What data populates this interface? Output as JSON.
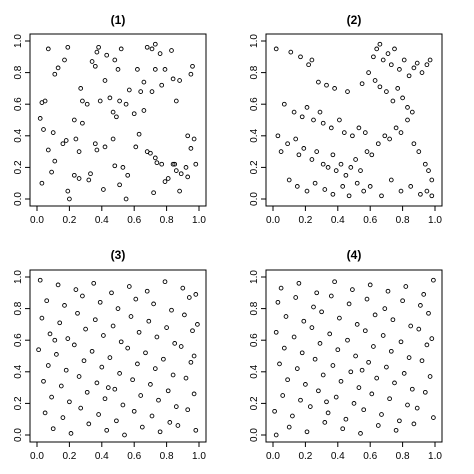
{
  "chart_data": [
    {
      "type": "scatter",
      "title": "(1)",
      "xlim": [
        0,
        1
      ],
      "ylim": [
        0,
        1
      ],
      "xticks": [
        "0.0",
        "0.2",
        "0.4",
        "0.6",
        "0.8",
        "1.0"
      ],
      "yticks": [
        "0.0",
        "0.2",
        "0.4",
        "0.6",
        "0.8",
        "1.0"
      ],
      "grid": false,
      "x": [
        0.07,
        0.19,
        0.17,
        0.13,
        0.11,
        0.37,
        0.38,
        0.43,
        0.48,
        0.52,
        0.5,
        0.42,
        0.36,
        0.34,
        0.27,
        0.28,
        0.68,
        0.71,
        0.73,
        0.76,
        0.73,
        0.79,
        0.83,
        0.84,
        0.86,
        0.88,
        0.95,
        0.96,
        0.77,
        0.71,
        0.62,
        0.64,
        0.66,
        0.57,
        0.55,
        0.51,
        0.47,
        0.45,
        0.49,
        0.39,
        0.31,
        0.28,
        0.23,
        0.24,
        0.18,
        0.1,
        0.02,
        0.03,
        0.05,
        0.04,
        0.07,
        0.11,
        0.16,
        0.23,
        0.26,
        0.36,
        0.37,
        0.42,
        0.47,
        0.48,
        0.53,
        0.56,
        0.61,
        0.63,
        0.68,
        0.7,
        0.73,
        0.74,
        0.77,
        0.84,
        0.86,
        0.88,
        0.92,
        0.93,
        0.95,
        0.97,
        0.98,
        0.93,
        0.89,
        0.85,
        0.81,
        0.79,
        0.72,
        0.55,
        0.51,
        0.41,
        0.32,
        0.33,
        0.26,
        0.19,
        0.2,
        0.09,
        0.03,
        0.6,
        0.66
      ],
      "y": [
        0.95,
        0.96,
        0.88,
        0.83,
        0.79,
        0.93,
        0.96,
        0.91,
        0.88,
        0.95,
        0.82,
        0.75,
        0.84,
        0.87,
        0.7,
        0.62,
        0.96,
        0.95,
        0.98,
        0.92,
        0.82,
        0.82,
        0.94,
        0.76,
        0.62,
        0.75,
        0.79,
        0.84,
        0.72,
        0.68,
        0.82,
        0.68,
        0.74,
        0.69,
        0.6,
        0.62,
        0.55,
        0.64,
        0.52,
        0.62,
        0.6,
        0.48,
        0.5,
        0.38,
        0.37,
        0.42,
        0.51,
        0.61,
        0.62,
        0.44,
        0.31,
        0.24,
        0.35,
        0.15,
        0.3,
        0.35,
        0.31,
        0.33,
        0.38,
        0.21,
        0.2,
        0.15,
        0.33,
        0.41,
        0.3,
        0.29,
        0.26,
        0.23,
        0.22,
        0.22,
        0.18,
        0.05,
        0.2,
        0.4,
        0.32,
        0.38,
        0.22,
        0.14,
        0.16,
        0.22,
        0.13,
        0.11,
        0.04,
        0.0,
        0.09,
        0.06,
        0.12,
        0.16,
        0.13,
        0.05,
        0.0,
        0.17,
        0.1,
        0.54,
        0.56
      ]
    },
    {
      "type": "scatter",
      "title": "(2)",
      "xlim": [
        0,
        1
      ],
      "ylim": [
        0,
        1
      ],
      "xticks": [
        "0.0",
        "0.2",
        "0.4",
        "0.6",
        "0.8",
        "1.0"
      ],
      "yticks": [
        "0.0",
        "0.2",
        "0.4",
        "0.6",
        "0.8",
        "1.0"
      ],
      "grid": false,
      "x": [
        0.02,
        0.11,
        0.17,
        0.22,
        0.24,
        0.28,
        0.33,
        0.38,
        0.46,
        0.55,
        0.59,
        0.62,
        0.64,
        0.66,
        0.68,
        0.71,
        0.73,
        0.75,
        0.78,
        0.81,
        0.84,
        0.87,
        0.89,
        0.92,
        0.95,
        0.97,
        0.63,
        0.66,
        0.7,
        0.74,
        0.77,
        0.8,
        0.83,
        0.86,
        0.07,
        0.13,
        0.18,
        0.21,
        0.25,
        0.29,
        0.31,
        0.36,
        0.41,
        0.44,
        0.49,
        0.53,
        0.57,
        0.03,
        0.05,
        0.09,
        0.14,
        0.16,
        0.19,
        0.24,
        0.27,
        0.31,
        0.34,
        0.37,
        0.39,
        0.42,
        0.45,
        0.48,
        0.51,
        0.54,
        0.58,
        0.61,
        0.65,
        0.69,
        0.72,
        0.76,
        0.79,
        0.83,
        0.87,
        0.9,
        0.94,
        0.96,
        0.98,
        0.1,
        0.15,
        0.21,
        0.26,
        0.32,
        0.37,
        0.43,
        0.47,
        0.52,
        0.56,
        0.6,
        0.67,
        0.73,
        0.79,
        0.85,
        0.91,
        0.95,
        0.98
      ],
      "y": [
        0.95,
        0.93,
        0.9,
        0.85,
        0.88,
        0.74,
        0.72,
        0.7,
        0.68,
        0.73,
        0.8,
        0.9,
        0.95,
        0.98,
        0.88,
        0.92,
        0.85,
        0.95,
        0.82,
        0.88,
        0.78,
        0.83,
        0.86,
        0.8,
        0.85,
        0.88,
        0.75,
        0.71,
        0.68,
        0.62,
        0.7,
        0.64,
        0.58,
        0.55,
        0.6,
        0.55,
        0.52,
        0.58,
        0.5,
        0.55,
        0.48,
        0.45,
        0.5,
        0.42,
        0.4,
        0.45,
        0.42,
        0.4,
        0.3,
        0.35,
        0.38,
        0.28,
        0.32,
        0.25,
        0.3,
        0.22,
        0.2,
        0.28,
        0.18,
        0.22,
        0.15,
        0.2,
        0.25,
        0.18,
        0.3,
        0.28,
        0.35,
        0.4,
        0.38,
        0.45,
        0.42,
        0.5,
        0.35,
        0.3,
        0.22,
        0.18,
        0.12,
        0.12,
        0.08,
        0.05,
        0.1,
        0.06,
        0.03,
        0.08,
        0.02,
        0.1,
        0.05,
        0.08,
        0.02,
        0.12,
        0.05,
        0.08,
        0.03,
        0.05,
        0.02
      ]
    },
    {
      "type": "scatter",
      "title": "(3)",
      "xlim": [
        0,
        1
      ],
      "ylim": [
        0,
        1
      ],
      "xticks": [
        "0.0",
        "0.2",
        "0.4",
        "0.6",
        "0.8",
        "1.0"
      ],
      "yticks": [
        "0.0",
        "0.2",
        "0.4",
        "0.6",
        "0.8",
        "1.0"
      ],
      "grid": false,
      "x": [
        0.02,
        0.13,
        0.24,
        0.35,
        0.46,
        0.57,
        0.68,
        0.79,
        0.9,
        0.98,
        0.06,
        0.17,
        0.28,
        0.39,
        0.5,
        0.61,
        0.72,
        0.83,
        0.94,
        0.03,
        0.14,
        0.25,
        0.36,
        0.47,
        0.58,
        0.69,
        0.8,
        0.91,
        0.99,
        0.08,
        0.19,
        0.3,
        0.41,
        0.52,
        0.63,
        0.74,
        0.85,
        0.96,
        0.01,
        0.12,
        0.23,
        0.34,
        0.45,
        0.56,
        0.67,
        0.78,
        0.89,
        0.97,
        0.07,
        0.18,
        0.29,
        0.4,
        0.51,
        0.62,
        0.73,
        0.84,
        0.95,
        0.04,
        0.15,
        0.26,
        0.37,
        0.48,
        0.59,
        0.7,
        0.81,
        0.92,
        0.09,
        0.2,
        0.31,
        0.42,
        0.53,
        0.64,
        0.75,
        0.86,
        0.97,
        0.05,
        0.16,
        0.27,
        0.38,
        0.49,
        0.6,
        0.71,
        0.82,
        0.93,
        0.1,
        0.21,
        0.32,
        0.43,
        0.54,
        0.65,
        0.76,
        0.87,
        0.98,
        0.11,
        0.44
      ],
      "y": [
        0.98,
        0.95,
        0.92,
        0.96,
        0.9,
        0.94,
        0.91,
        0.97,
        0.93,
        0.89,
        0.85,
        0.82,
        0.88,
        0.84,
        0.8,
        0.86,
        0.83,
        0.79,
        0.87,
        0.74,
        0.71,
        0.77,
        0.73,
        0.69,
        0.75,
        0.72,
        0.68,
        0.76,
        0.7,
        0.64,
        0.61,
        0.67,
        0.63,
        0.59,
        0.65,
        0.62,
        0.58,
        0.66,
        0.54,
        0.51,
        0.57,
        0.53,
        0.49,
        0.55,
        0.52,
        0.48,
        0.56,
        0.5,
        0.44,
        0.41,
        0.47,
        0.43,
        0.39,
        0.45,
        0.42,
        0.38,
        0.46,
        0.34,
        0.31,
        0.37,
        0.33,
        0.29,
        0.35,
        0.32,
        0.28,
        0.36,
        0.24,
        0.21,
        0.27,
        0.23,
        0.19,
        0.25,
        0.22,
        0.18,
        0.26,
        0.14,
        0.11,
        0.17,
        0.13,
        0.09,
        0.15,
        0.12,
        0.08,
        0.16,
        0.04,
        0.01,
        0.07,
        0.03,
        0.0,
        0.05,
        0.02,
        0.06,
        0.03,
        0.6,
        0.3
      ]
    },
    {
      "type": "scatter",
      "title": "(4)",
      "xlim": [
        0,
        1
      ],
      "ylim": [
        0,
        1
      ],
      "xticks": [
        "0.0",
        "0.2",
        "0.4",
        "0.6",
        "0.8",
        "1.0"
      ],
      "yticks": [
        "0.0",
        "0.2",
        "0.4",
        "0.6",
        "0.8",
        "1.0"
      ],
      "grid": false,
      "x": [
        0.05,
        0.16,
        0.27,
        0.38,
        0.49,
        0.6,
        0.71,
        0.82,
        0.93,
        0.99,
        0.03,
        0.14,
        0.25,
        0.36,
        0.47,
        0.58,
        0.69,
        0.8,
        0.91,
        0.08,
        0.19,
        0.3,
        0.41,
        0.52,
        0.63,
        0.74,
        0.85,
        0.96,
        0.02,
        0.13,
        0.24,
        0.35,
        0.46,
        0.57,
        0.68,
        0.79,
        0.9,
        0.98,
        0.07,
        0.18,
        0.29,
        0.4,
        0.51,
        0.62,
        0.73,
        0.84,
        0.95,
        0.04,
        0.15,
        0.26,
        0.37,
        0.48,
        0.59,
        0.7,
        0.81,
        0.92,
        0.09,
        0.2,
        0.31,
        0.42,
        0.53,
        0.64,
        0.75,
        0.86,
        0.97,
        0.06,
        0.17,
        0.28,
        0.39,
        0.5,
        0.61,
        0.72,
        0.83,
        0.94,
        0.01,
        0.12,
        0.23,
        0.34,
        0.45,
        0.56,
        0.67,
        0.78,
        0.89,
        0.99,
        0.1,
        0.21,
        0.32,
        0.43,
        0.54,
        0.65,
        0.76,
        0.87,
        0.02,
        0.55,
        0.33
      ],
      "y": [
        0.93,
        0.96,
        0.9,
        0.97,
        0.92,
        0.95,
        0.91,
        0.94,
        0.89,
        0.98,
        0.84,
        0.87,
        0.81,
        0.88,
        0.83,
        0.86,
        0.8,
        0.85,
        0.82,
        0.75,
        0.72,
        0.78,
        0.74,
        0.7,
        0.76,
        0.73,
        0.69,
        0.77,
        0.65,
        0.62,
        0.68,
        0.64,
        0.6,
        0.66,
        0.63,
        0.59,
        0.67,
        0.61,
        0.55,
        0.52,
        0.58,
        0.54,
        0.5,
        0.56,
        0.53,
        0.49,
        0.57,
        0.45,
        0.42,
        0.48,
        0.44,
        0.4,
        0.46,
        0.43,
        0.39,
        0.47,
        0.35,
        0.32,
        0.38,
        0.34,
        0.3,
        0.36,
        0.33,
        0.29,
        0.37,
        0.25,
        0.22,
        0.28,
        0.24,
        0.2,
        0.26,
        0.23,
        0.19,
        0.27,
        0.15,
        0.12,
        0.18,
        0.14,
        0.1,
        0.16,
        0.13,
        0.09,
        0.17,
        0.11,
        0.05,
        0.02,
        0.08,
        0.04,
        0.01,
        0.06,
        0.03,
        0.07,
        0.0,
        0.41,
        0.21
      ]
    }
  ]
}
